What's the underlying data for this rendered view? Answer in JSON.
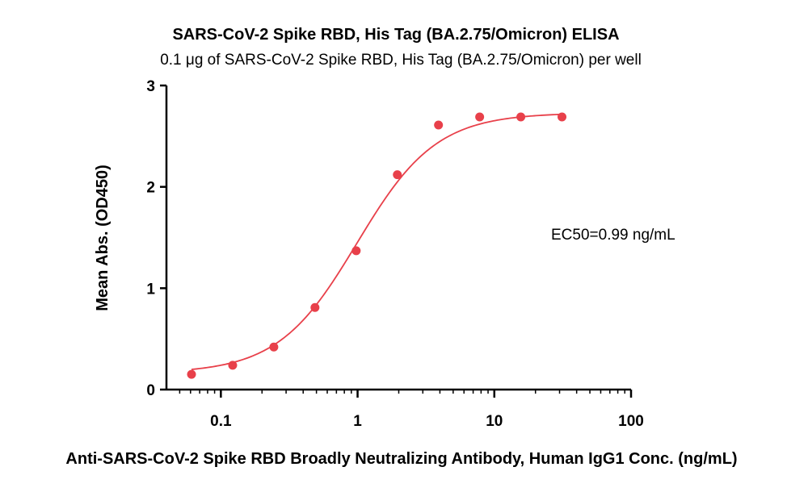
{
  "chart_data": {
    "type": "scatter",
    "title": "SARS-CoV-2 Spike RBD, His Tag (BA.2.75/Omicron) ELISA",
    "subtitle": "0.1 μg of SARS-CoV-2 Spike RBD, His Tag (BA.2.75/Omicron) per well",
    "xlabel": "Anti-SARS-CoV-2 Spike RBD Broadly Neutralizing Antibody, Human IgG1 Conc. (ng/mL)",
    "ylabel": "Mean Abs. (OD450)",
    "x_scale": "log",
    "xlim": [
      0.04,
      100
    ],
    "ylim": [
      0,
      3
    ],
    "x_ticks": [
      0.1,
      1,
      10,
      100
    ],
    "x_tick_labels": [
      "0.1",
      "1",
      "10",
      "100"
    ],
    "y_ticks": [
      0,
      1,
      2,
      3
    ],
    "y_tick_labels": [
      "0",
      "1",
      "2",
      "3"
    ],
    "annotation": "EC50=0.99 ng/mL",
    "color": "#e8404a",
    "series": [
      {
        "x": [
          0.061,
          0.122,
          0.244,
          0.488,
          0.977,
          1.953,
          3.906,
          7.813,
          15.625,
          31.25
        ],
        "y": [
          0.15,
          0.24,
          0.42,
          0.81,
          1.37,
          2.12,
          2.61,
          2.69,
          2.69,
          2.69
        ]
      }
    ],
    "fit": {
      "bottom": 0.16,
      "top": 2.73,
      "ec50": 0.99,
      "hill": 1.5
    }
  }
}
